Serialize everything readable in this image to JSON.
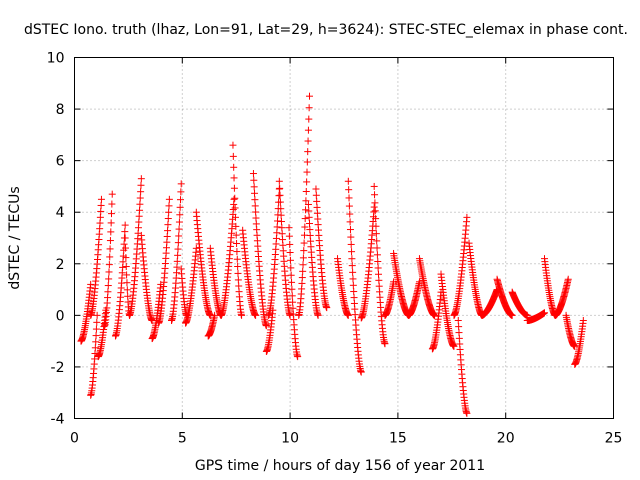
{
  "chart_data": {
    "type": "scatter",
    "title": "dSTEC Iono. truth (lhaz, Lon=91, Lat=29, h=3624): STEC-STEC_elemax in phase cont.",
    "xlabel": "GPS time / hours of day 156 of year 2011",
    "ylabel": "dSTEC  / TECUs",
    "xlim": [
      0,
      25
    ],
    "ylim": [
      -4,
      10
    ],
    "xticks": [
      0,
      5,
      10,
      15,
      20,
      25
    ],
    "yticks": [
      -4,
      -2,
      0,
      2,
      4,
      6,
      8,
      10
    ],
    "grid": true,
    "marker": "+",
    "color": "#ff0000",
    "tracks": [
      {
        "start": 0.3,
        "end": 0.75,
        "y0": -1.0,
        "y1": 1.2,
        "peak": 1.2,
        "shape": "rise"
      },
      {
        "start": 0.75,
        "end": 1.05,
        "y0": -3.1,
        "y1": 0.0,
        "peak": -3.1,
        "shape": "rise"
      },
      {
        "start": 0.75,
        "end": 1.25,
        "y0": 0.0,
        "y1": 4.5,
        "peak": 4.5,
        "shape": "rise"
      },
      {
        "start": 1.1,
        "end": 1.45,
        "y0": -1.6,
        "y1": 0.2,
        "peak": -1.6,
        "shape": "rise"
      },
      {
        "start": 1.4,
        "end": 1.75,
        "y0": -0.4,
        "y1": 4.7,
        "peak": 4.7,
        "shape": "rise"
      },
      {
        "start": 1.9,
        "end": 2.35,
        "y0": -0.8,
        "y1": 3.5,
        "peak": 3.5,
        "shape": "rise"
      },
      {
        "start": 2.35,
        "end": 2.55,
        "y0": 3.0,
        "y1": 0.0,
        "peak": 3.0,
        "shape": "fall"
      },
      {
        "start": 2.55,
        "end": 3.1,
        "y0": 0.0,
        "y1": 5.3,
        "peak": 5.3,
        "shape": "rise"
      },
      {
        "start": 3.1,
        "end": 3.6,
        "y0": 3.1,
        "y1": -0.2,
        "peak": 3.1,
        "shape": "fall"
      },
      {
        "start": 3.6,
        "end": 4.0,
        "y0": -0.9,
        "y1": 1.2,
        "peak": 1.2,
        "shape": "rise"
      },
      {
        "start": 3.9,
        "end": 4.4,
        "y0": -0.3,
        "y1": 4.5,
        "peak": 4.5,
        "shape": "rise"
      },
      {
        "start": 4.5,
        "end": 4.95,
        "y0": -0.2,
        "y1": 5.1,
        "peak": 5.1,
        "shape": "rise"
      },
      {
        "start": 4.95,
        "end": 5.2,
        "y0": 1.8,
        "y1": 0.0,
        "peak": 1.8,
        "shape": "fall"
      },
      {
        "start": 5.15,
        "end": 5.65,
        "y0": -0.3,
        "y1": 2.6,
        "peak": 2.6,
        "shape": "rise"
      },
      {
        "start": 5.65,
        "end": 6.3,
        "y0": 4.0,
        "y1": 0.0,
        "peak": 4.0,
        "shape": "fall"
      },
      {
        "start": 6.2,
        "end": 6.5,
        "y0": -0.8,
        "y1": 0.0,
        "peak": -0.8,
        "shape": "rise"
      },
      {
        "start": 6.3,
        "end": 6.8,
        "y0": 2.6,
        "y1": 0.0,
        "peak": 2.6,
        "shape": "fall"
      },
      {
        "start": 6.8,
        "end": 7.4,
        "y0": 0.0,
        "y1": 4.5,
        "peak": 4.5,
        "shape": "rise"
      },
      {
        "start": 7.35,
        "end": 7.75,
        "y0": 6.6,
        "y1": 0.0,
        "peak": 6.6,
        "shape": "fall"
      },
      {
        "start": 7.8,
        "end": 8.4,
        "y0": 3.3,
        "y1": 0.0,
        "peak": 3.3,
        "shape": "fall"
      },
      {
        "start": 8.3,
        "end": 8.9,
        "y0": 5.5,
        "y1": -0.4,
        "peak": 5.5,
        "shape": "fall"
      },
      {
        "start": 8.9,
        "end": 9.2,
        "y0": -1.4,
        "y1": 0.2,
        "peak": -1.4,
        "shape": "rise"
      },
      {
        "start": 9.0,
        "end": 9.5,
        "y0": 0.0,
        "y1": 4.9,
        "peak": 4.9,
        "shape": "rise"
      },
      {
        "start": 9.5,
        "end": 10.0,
        "y0": 5.2,
        "y1": 0.0,
        "peak": 5.2,
        "shape": "fall"
      },
      {
        "start": 9.95,
        "end": 10.35,
        "y0": 3.4,
        "y1": -1.6,
        "peak": 3.4,
        "shape": "fall"
      },
      {
        "start": 10.4,
        "end": 10.9,
        "y0": 0.0,
        "y1": 8.5,
        "peak": 8.5,
        "shape": "rise"
      },
      {
        "start": 10.85,
        "end": 11.3,
        "y0": 4.3,
        "y1": 0.0,
        "peak": 4.3,
        "shape": "fall"
      },
      {
        "start": 11.2,
        "end": 11.7,
        "y0": 4.9,
        "y1": 0.3,
        "peak": 4.9,
        "shape": "fall"
      },
      {
        "start": 12.2,
        "end": 12.7,
        "y0": 2.2,
        "y1": 0.0,
        "peak": 2.2,
        "shape": "fall"
      },
      {
        "start": 12.7,
        "end": 13.3,
        "y0": 5.2,
        "y1": -2.2,
        "peak": 5.2,
        "shape": "fall"
      },
      {
        "start": 13.3,
        "end": 13.9,
        "y0": -0.1,
        "y1": 4.2,
        "peak": 4.2,
        "shape": "rise"
      },
      {
        "start": 13.9,
        "end": 14.4,
        "y0": 5.0,
        "y1": -1.1,
        "peak": 5.0,
        "shape": "fall"
      },
      {
        "start": 14.4,
        "end": 14.8,
        "y0": 0.0,
        "y1": 1.3,
        "peak": 1.3,
        "shape": "rise"
      },
      {
        "start": 14.8,
        "end": 15.5,
        "y0": 2.4,
        "y1": 0.0,
        "peak": 2.4,
        "shape": "fall"
      },
      {
        "start": 15.5,
        "end": 16.0,
        "y0": 0.0,
        "y1": 1.3,
        "peak": 1.3,
        "shape": "rise"
      },
      {
        "start": 16.0,
        "end": 16.7,
        "y0": 2.2,
        "y1": 0.0,
        "peak": 2.2,
        "shape": "fall"
      },
      {
        "start": 16.6,
        "end": 17.0,
        "y0": -1.3,
        "y1": 0.9,
        "peak": -1.3,
        "shape": "rise"
      },
      {
        "start": 17.0,
        "end": 17.6,
        "y0": 1.6,
        "y1": -1.2,
        "peak": 1.6,
        "shape": "fall"
      },
      {
        "start": 17.6,
        "end": 18.2,
        "y0": 0.0,
        "y1": 3.8,
        "peak": 3.8,
        "shape": "rise"
      },
      {
        "start": 17.8,
        "end": 18.2,
        "y0": -0.2,
        "y1": -3.8,
        "peak": -3.8,
        "shape": "fall"
      },
      {
        "start": 18.3,
        "end": 18.9,
        "y0": 2.8,
        "y1": 0.0,
        "peak": 2.8,
        "shape": "fall"
      },
      {
        "start": 18.9,
        "end": 19.6,
        "y0": 0.0,
        "y1": 1.0,
        "peak": 1.0,
        "shape": "rise"
      },
      {
        "start": 19.6,
        "end": 20.3,
        "y0": 1.4,
        "y1": 0.0,
        "peak": 1.4,
        "shape": "fall"
      },
      {
        "start": 20.3,
        "end": 21.0,
        "y0": 0.9,
        "y1": 0.0,
        "peak": 0.9,
        "shape": "fall"
      },
      {
        "start": 21.0,
        "end": 21.8,
        "y0": -0.2,
        "y1": 0.1,
        "peak": 0.1,
        "shape": "rise"
      },
      {
        "start": 21.8,
        "end": 22.3,
        "y0": 2.2,
        "y1": 0.0,
        "peak": 2.2,
        "shape": "fall"
      },
      {
        "start": 22.3,
        "end": 22.9,
        "y0": 0.0,
        "y1": 1.4,
        "peak": 1.4,
        "shape": "rise"
      },
      {
        "start": 22.8,
        "end": 23.2,
        "y0": 0.0,
        "y1": -1.2,
        "peak": -1.2,
        "shape": "fall"
      },
      {
        "start": 23.2,
        "end": 23.6,
        "y0": -1.9,
        "y1": -0.2,
        "peak": -1.9,
        "shape": "rise"
      }
    ]
  }
}
